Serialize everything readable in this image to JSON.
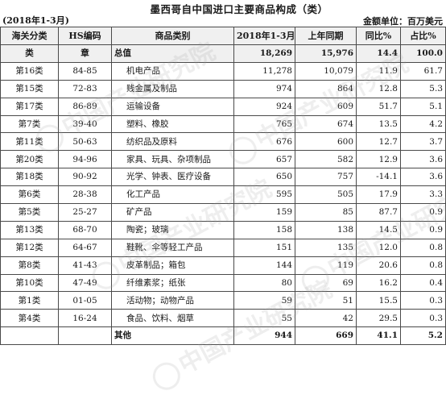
{
  "title": "墨西哥自中国进口主要商品构成（类）",
  "period": "(2018年1-3月)",
  "unit": "金额单位：百万美元",
  "headers": [
    "海关分类",
    "HS编码",
    "商品类别",
    "2018年1-3月",
    "上年同期",
    "同比%",
    "占比%"
  ],
  "subheader": [
    "类",
    "章",
    "总值",
    "18,269",
    "15,976",
    "14.4",
    "100.0"
  ],
  "rows": [
    [
      "第16类",
      "84-85",
      "机电产品",
      "11,278",
      "10,079",
      "11.9",
      "61.7"
    ],
    [
      "第15类",
      "72-83",
      "贱金属及制品",
      "974",
      "864",
      "12.8",
      "5.3"
    ],
    [
      "第17类",
      "86-89",
      "运输设备",
      "924",
      "609",
      "51.7",
      "5.1"
    ],
    [
      "第7类",
      "39-40",
      "塑料、橡胶",
      "765",
      "674",
      "13.5",
      "4.2"
    ],
    [
      "第11类",
      "50-63",
      "纺织品及原料",
      "676",
      "600",
      "12.7",
      "3.7"
    ],
    [
      "第20类",
      "94-96",
      "家具、玩具、杂项制品",
      "657",
      "582",
      "12.9",
      "3.6"
    ],
    [
      "第18类",
      "90-92",
      "光学、钟表、医疗设备",
      "650",
      "757",
      "-14.1",
      "3.6"
    ],
    [
      "第6类",
      "28-38",
      "化工产品",
      "595",
      "505",
      "17.9",
      "3.3"
    ],
    [
      "第5类",
      "25-27",
      "矿产品",
      "159",
      "85",
      "87.7",
      "0.9"
    ],
    [
      "第13类",
      "68-70",
      "陶瓷；玻璃",
      "158",
      "138",
      "14.5",
      "0.9"
    ],
    [
      "第12类",
      "64-67",
      "鞋靴、伞等轻工产品",
      "151",
      "135",
      "12.0",
      "0.8"
    ],
    [
      "第8类",
      "41-43",
      "皮革制品；箱包",
      "144",
      "119",
      "20.6",
      "0.8"
    ],
    [
      "第10类",
      "47-49",
      "纤维素浆；纸张",
      "80",
      "69",
      "16.2",
      "0.4"
    ],
    [
      "第1类",
      "01-05",
      "活动物；动物产品",
      "59",
      "51",
      "15.5",
      "0.3"
    ],
    [
      "第4类",
      "16-24",
      "食品、饮料、烟草",
      "55",
      "42",
      "29.5",
      "0.3"
    ]
  ],
  "total": [
    "",
    "",
    "其他",
    "944",
    "669",
    "41.1",
    "5.2"
  ],
  "watermark": "中国产业研究院"
}
